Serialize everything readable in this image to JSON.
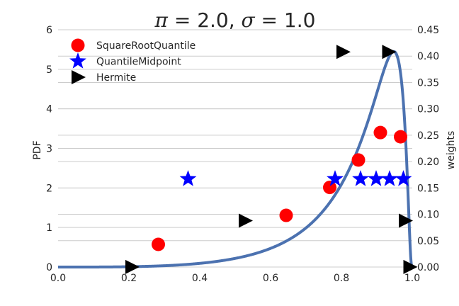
{
  "chart_data": {
    "type": "scatter",
    "title": {
      "pi_symbol": "π",
      "pi_value": " = 2.0, ",
      "sigma_symbol": "σ",
      "sigma_value": " = 1.0"
    },
    "xlabel": "",
    "ylabel_left": "PDF",
    "ylabel_right": "weights",
    "xlim": [
      0.0,
      1.0
    ],
    "ylim_left": [
      0,
      6
    ],
    "ylim_right": [
      0.0,
      0.45
    ],
    "x_ticks": [
      "0.0",
      "0.2",
      "0.4",
      "0.6",
      "0.8",
      "1.0"
    ],
    "y_left_ticks": [
      "0",
      "1",
      "2",
      "3",
      "4",
      "5",
      "6"
    ],
    "y_right_ticks": [
      "0.00",
      "0.05",
      "0.10",
      "0.15",
      "0.20",
      "0.25",
      "0.30",
      "0.35",
      "0.40",
      "0.45"
    ],
    "grid": "horizontal",
    "legend_position": "top-left",
    "pdf_curve": {
      "color": "#4c72b0",
      "params": {
        "pi": 2.0,
        "sigma": 1.0
      },
      "peak_x": 0.947,
      "peak_y": 5.45
    },
    "series": [
      {
        "name": "SquareRootQuantile",
        "marker": "circle",
        "color": "#ff0000",
        "x": [
          0.283,
          0.644,
          0.767,
          0.848,
          0.91,
          0.967
        ],
        "y": [
          0.043,
          0.098,
          0.151,
          0.203,
          0.255,
          0.247
        ]
      },
      {
        "name": "QuantileMidpoint",
        "marker": "star",
        "color": "#0000ff",
        "x": [
          0.367,
          0.782,
          0.854,
          0.898,
          0.936,
          0.975
        ],
        "y": [
          0.167,
          0.167,
          0.167,
          0.167,
          0.167,
          0.167
        ]
      },
      {
        "name": "Hermite",
        "marker": "triangle-right",
        "color": "#000000",
        "x": [
          0.208,
          0.528,
          0.804,
          0.933,
          0.98,
          0.993
        ],
        "y": [
          0.0002,
          0.088,
          0.408,
          0.408,
          0.088,
          0.0002
        ]
      }
    ]
  }
}
